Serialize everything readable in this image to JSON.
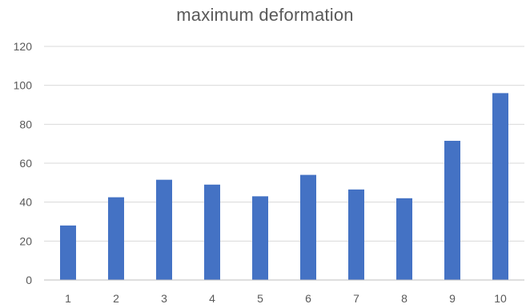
{
  "chart_data": {
    "type": "bar",
    "title": "maximum deformation",
    "xlabel": "",
    "ylabel": "",
    "categories": [
      "1",
      "2",
      "3",
      "4",
      "5",
      "6",
      "7",
      "8",
      "9",
      "10"
    ],
    "values": [
      28,
      42.5,
      51.5,
      49,
      43,
      54,
      46.5,
      42,
      71.5,
      96
    ],
    "ylim": [
      0,
      120
    ],
    "yticks": [
      0,
      20,
      40,
      60,
      80,
      100,
      120
    ],
    "grid": true,
    "legend": "none",
    "bar_color": "#4472c4"
  }
}
